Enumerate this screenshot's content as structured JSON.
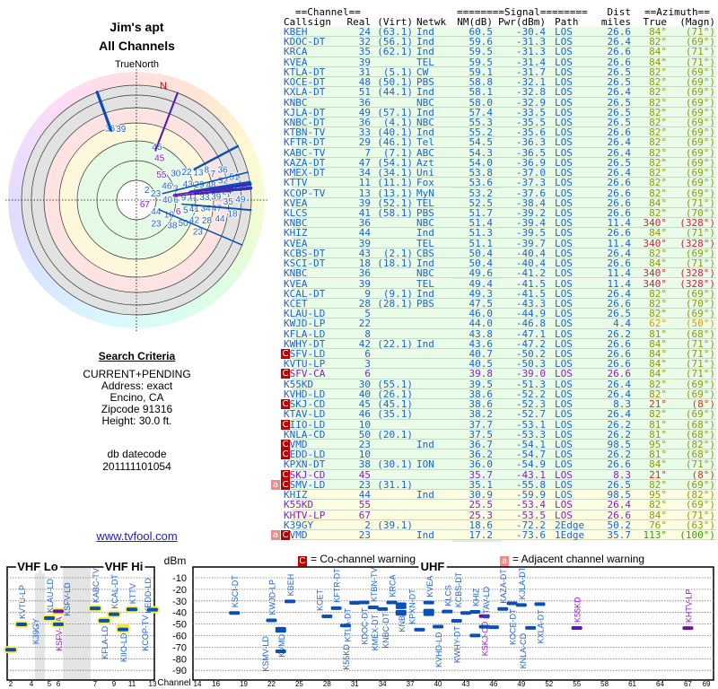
{
  "left": {
    "title": "Jim's apt",
    "subtitle": "All Channels",
    "true_north": "TrueNorth",
    "north_marker": "N",
    "search": {
      "heading": "Search Criteria",
      "lines": [
        "CURRENT+PENDING",
        "Address: exact",
        "Encino, CA",
        "Zipcode 91316",
        "Height: 30.0 ft."
      ]
    },
    "db_label": "db datecode",
    "db_value": "201111101054",
    "link": "www.tvfool.com"
  },
  "colors": {
    "blue": "#1c62d8",
    "purple": "#8a1ad0",
    "marker_blue": "#0a4fb8",
    "marker_purple": "#6a10b0",
    "co_warn": "#c00000",
    "adj_warn": "#f08a8a"
  },
  "table": {
    "group_channel": "==Channel==",
    "group_signal": "========Signal========",
    "group_dist": "Dist",
    "group_azimuth": "==Azimuth==",
    "columns": {
      "callsign": "Callsign",
      "real": "Real",
      "virt": "(Virt)",
      "netwk": "Netwk",
      "nm": "NM(dB)",
      "pwr": "Pwr(dBm)",
      "path": "Path",
      "dist": "miles",
      "az": "True",
      "magn": "(Magn)"
    },
    "rows": [
      {
        "warn": "",
        "callsign": "KBEH",
        "real": "24",
        "virt": "(63.1)",
        "netwk": "Ind",
        "nm": "60.5",
        "pwr": "-30.4",
        "path": "LOS",
        "dist": "26.6",
        "az": "84°",
        "magn": "(71°)",
        "color": "blue",
        "az_color": "olive",
        "bg": "green"
      },
      {
        "warn": "",
        "callsign": "KDOC-DT",
        "real": "32",
        "virt": "(56.1)",
        "netwk": "Ind",
        "nm": "59.6",
        "pwr": "-31.3",
        "path": "LOS",
        "dist": "26.4",
        "az": "82°",
        "magn": "(69°)",
        "color": "blue",
        "az_color": "olive",
        "bg": "green"
      },
      {
        "warn": "",
        "callsign": "KRCA",
        "real": "35",
        "virt": "(62.1)",
        "netwk": "Ind",
        "nm": "59.5",
        "pwr": "-31.3",
        "path": "LOS",
        "dist": "26.6",
        "az": "84°",
        "magn": "(71°)",
        "color": "blue",
        "az_color": "olive",
        "bg": "green"
      },
      {
        "warn": "",
        "callsign": "KVEA",
        "real": "39",
        "virt": "",
        "netwk": "TEL",
        "nm": "59.5",
        "pwr": "-31.4",
        "path": "LOS",
        "dist": "26.6",
        "az": "84°",
        "magn": "(71°)",
        "color": "blue",
        "az_color": "olive",
        "bg": "green"
      },
      {
        "warn": "",
        "callsign": "KTLA-DT",
        "real": "31",
        "virt": "(5.1)",
        "netwk": "CW",
        "nm": "59.1",
        "pwr": "-31.7",
        "path": "LOS",
        "dist": "26.5",
        "az": "82°",
        "magn": "(69°)",
        "color": "blue",
        "az_color": "olive",
        "bg": "green"
      },
      {
        "warn": "",
        "callsign": "KOCE-DT",
        "real": "48",
        "virt": "(50.1)",
        "netwk": "PBS",
        "nm": "58.8",
        "pwr": "-32.1",
        "path": "LOS",
        "dist": "26.5",
        "az": "82°",
        "magn": "(69°)",
        "color": "blue",
        "az_color": "olive",
        "bg": "green"
      },
      {
        "warn": "",
        "callsign": "KXLA-DT",
        "real": "51",
        "virt": "(44.1)",
        "netwk": "Ind",
        "nm": "58.1",
        "pwr": "-32.8",
        "path": "LOS",
        "dist": "26.4",
        "az": "82°",
        "magn": "(69°)",
        "color": "blue",
        "az_color": "olive",
        "bg": "green"
      },
      {
        "warn": "",
        "callsign": "KNBC",
        "real": "36",
        "virt": "",
        "netwk": "NBC",
        "nm": "58.0",
        "pwr": "-32.9",
        "path": "LOS",
        "dist": "26.5",
        "az": "82°",
        "magn": "(69°)",
        "color": "blue",
        "az_color": "olive",
        "bg": "green"
      },
      {
        "warn": "",
        "callsign": "KJLA-DT",
        "real": "49",
        "virt": "(57.1)",
        "netwk": "Ind",
        "nm": "57.4",
        "pwr": "-33.5",
        "path": "LOS",
        "dist": "26.5",
        "az": "82°",
        "magn": "(69°)",
        "color": "blue",
        "az_color": "olive",
        "bg": "green"
      },
      {
        "warn": "",
        "callsign": "KNBC-DT",
        "real": "36",
        "virt": "(4.1)",
        "netwk": "NBC",
        "nm": "55.3",
        "pwr": "-35.5",
        "path": "LOS",
        "dist": "26.5",
        "az": "82°",
        "magn": "(69°)",
        "color": "blue",
        "az_color": "olive",
        "bg": "green"
      },
      {
        "warn": "",
        "callsign": "KTBN-TV",
        "real": "33",
        "virt": "(40.1)",
        "netwk": "Ind",
        "nm": "55.2",
        "pwr": "-35.6",
        "path": "LOS",
        "dist": "26.6",
        "az": "82°",
        "magn": "(69°)",
        "color": "blue",
        "az_color": "olive",
        "bg": "green"
      },
      {
        "warn": "",
        "callsign": "KFTR-DT",
        "real": "29",
        "virt": "(46.1)",
        "netwk": "Tel",
        "nm": "54.5",
        "pwr": "-36.3",
        "path": "LOS",
        "dist": "26.4",
        "az": "82°",
        "magn": "(69°)",
        "color": "blue",
        "az_color": "olive",
        "bg": "green"
      },
      {
        "warn": "",
        "callsign": "KABC-TV",
        "real": "7",
        "virt": "(7.1)",
        "netwk": "ABC",
        "nm": "54.3",
        "pwr": "-36.5",
        "path": "LOS",
        "dist": "26.4",
        "az": "82°",
        "magn": "(69°)",
        "color": "blue",
        "az_color": "olive",
        "bg": "green"
      },
      {
        "warn": "",
        "callsign": "KAZA-DT",
        "real": "47",
        "virt": "(54.1)",
        "netwk": "Azt",
        "nm": "54.0",
        "pwr": "-36.9",
        "path": "LOS",
        "dist": "26.5",
        "az": "82°",
        "magn": "(69°)",
        "color": "blue",
        "az_color": "olive",
        "bg": "green"
      },
      {
        "warn": "",
        "callsign": "KMEX-DT",
        "real": "34",
        "virt": "(34.1)",
        "netwk": "Uni",
        "nm": "53.8",
        "pwr": "-37.0",
        "path": "LOS",
        "dist": "26.4",
        "az": "82°",
        "magn": "(69°)",
        "color": "blue",
        "az_color": "olive",
        "bg": "green"
      },
      {
        "warn": "",
        "callsign": "KTTV",
        "real": "11",
        "virt": "(11.1)",
        "netwk": "Fox",
        "nm": "53.6",
        "pwr": "-37.3",
        "path": "LOS",
        "dist": "26.6",
        "az": "82°",
        "magn": "(69°)",
        "color": "blue",
        "az_color": "olive",
        "bg": "green"
      },
      {
        "warn": "",
        "callsign": "KCOP-TV",
        "real": "13",
        "virt": "(13.1)",
        "netwk": "MyN",
        "nm": "53.2",
        "pwr": "-37.6",
        "path": "LOS",
        "dist": "26.6",
        "az": "82°",
        "magn": "(69°)",
        "color": "blue",
        "az_color": "olive",
        "bg": "green"
      },
      {
        "warn": "",
        "callsign": "KVEA",
        "real": "39",
        "virt": "(52.1)",
        "netwk": "TEL",
        "nm": "52.5",
        "pwr": "-38.4",
        "path": "LOS",
        "dist": "26.6",
        "az": "84°",
        "magn": "(71°)",
        "color": "blue",
        "az_color": "olive",
        "bg": "green"
      },
      {
        "warn": "",
        "callsign": "KLCS",
        "real": "41",
        "virt": "(58.1)",
        "netwk": "PBS",
        "nm": "51.7",
        "pwr": "-39.2",
        "path": "LOS",
        "dist": "26.6",
        "az": "82°",
        "magn": "(70°)",
        "color": "blue",
        "az_color": "olive",
        "bg": "green"
      },
      {
        "warn": "",
        "callsign": "KNBC",
        "real": "36",
        "virt": "",
        "netwk": "NBC",
        "nm": "51.4",
        "pwr": "-39.4",
        "path": "LOS",
        "dist": "11.4",
        "az": "340°",
        "magn": "(328°)",
        "color": "blue",
        "az_color": "red",
        "bg": "green"
      },
      {
        "warn": "",
        "callsign": "KHIZ",
        "real": "44",
        "virt": "",
        "netwk": "Ind",
        "nm": "51.3",
        "pwr": "-39.5",
        "path": "LOS",
        "dist": "26.6",
        "az": "84°",
        "magn": "(71°)",
        "color": "blue",
        "az_color": "olive",
        "bg": "green"
      },
      {
        "warn": "",
        "callsign": "KVEA",
        "real": "39",
        "virt": "",
        "netwk": "TEL",
        "nm": "51.1",
        "pwr": "-39.7",
        "path": "LOS",
        "dist": "11.4",
        "az": "340°",
        "magn": "(328°)",
        "color": "blue",
        "az_color": "red",
        "bg": "green"
      },
      {
        "warn": "",
        "callsign": "KCBS-DT",
        "real": "43",
        "virt": "(2.1)",
        "netwk": "CBS",
        "nm": "50.4",
        "pwr": "-40.4",
        "path": "LOS",
        "dist": "26.4",
        "az": "82°",
        "magn": "(69°)",
        "color": "blue",
        "az_color": "olive",
        "bg": "green"
      },
      {
        "warn": "",
        "callsign": "KSCI-DT",
        "real": "18",
        "virt": "(18.1)",
        "netwk": "Ind",
        "nm": "50.4",
        "pwr": "-40.4",
        "path": "LOS",
        "dist": "26.6",
        "az": "84°",
        "magn": "(71°)",
        "color": "blue",
        "az_color": "olive",
        "bg": "green"
      },
      {
        "warn": "",
        "callsign": "KNBC",
        "real": "36",
        "virt": "",
        "netwk": "NBC",
        "nm": "49.6",
        "pwr": "-41.2",
        "path": "LOS",
        "dist": "11.4",
        "az": "340°",
        "magn": "(328°)",
        "color": "blue",
        "az_color": "red",
        "bg": "green"
      },
      {
        "warn": "",
        "callsign": "KVEA",
        "real": "39",
        "virt": "",
        "netwk": "TEL",
        "nm": "49.4",
        "pwr": "-41.5",
        "path": "LOS",
        "dist": "11.4",
        "az": "340°",
        "magn": "(328°)",
        "color": "blue",
        "az_color": "red",
        "bg": "green"
      },
      {
        "warn": "",
        "callsign": "KCAL-DT",
        "real": "9",
        "virt": "(9.1)",
        "netwk": "Ind",
        "nm": "49.3",
        "pwr": "-41.5",
        "path": "LOS",
        "dist": "26.4",
        "az": "82°",
        "magn": "(69°)",
        "color": "blue",
        "az_color": "olive",
        "bg": "green"
      },
      {
        "warn": "",
        "callsign": "KCET",
        "real": "28",
        "virt": "(28.1)",
        "netwk": "PBS",
        "nm": "47.5",
        "pwr": "-43.3",
        "path": "LOS",
        "dist": "26.6",
        "az": "82°",
        "magn": "(70°)",
        "color": "blue",
        "az_color": "olive",
        "bg": "green"
      },
      {
        "warn": "",
        "callsign": "KLAU-LD",
        "real": "5",
        "virt": "",
        "netwk": "",
        "nm": "46.0",
        "pwr": "-44.9",
        "path": "LOS",
        "dist": "26.5",
        "az": "82°",
        "magn": "(69°)",
        "color": "blue",
        "az_color": "olive",
        "bg": "green"
      },
      {
        "warn": "",
        "callsign": "KWJD-LP",
        "real": "22",
        "virt": "",
        "netwk": "",
        "nm": "44.0",
        "pwr": "-46.8",
        "path": "LOS",
        "dist": "4.4",
        "az": "62°",
        "magn": "(50°)",
        "color": "blue",
        "az_color": "orange",
        "bg": "green"
      },
      {
        "warn": "",
        "callsign": "KFLA-LD",
        "real": "8",
        "virt": "",
        "netwk": "",
        "nm": "43.8",
        "pwr": "-47.1",
        "path": "LOS",
        "dist": "26.2",
        "az": "81°",
        "magn": "(68°)",
        "color": "blue",
        "az_color": "olive",
        "bg": "green"
      },
      {
        "warn": "",
        "callsign": "KWHY-DT",
        "real": "42",
        "virt": "(22.1)",
        "netwk": "Ind",
        "nm": "43.6",
        "pwr": "-47.2",
        "path": "LOS",
        "dist": "26.6",
        "az": "84°",
        "magn": "(71°)",
        "color": "blue",
        "az_color": "olive",
        "bg": "green"
      },
      {
        "warn": "C",
        "callsign": "KSFV-LD",
        "real": "6",
        "virt": "",
        "netwk": "",
        "nm": "40.7",
        "pwr": "-50.2",
        "path": "LOS",
        "dist": "26.6",
        "az": "84°",
        "magn": "(71°)",
        "color": "blue",
        "az_color": "olive",
        "bg": "green"
      },
      {
        "warn": "",
        "callsign": "KVTU-LP",
        "real": "3",
        "virt": "",
        "netwk": "",
        "nm": "40.5",
        "pwr": "-50.3",
        "path": "LOS",
        "dist": "26.6",
        "az": "84°",
        "magn": "(71°)",
        "color": "blue",
        "az_color": "olive",
        "bg": "green"
      },
      {
        "warn": "C",
        "callsign": "KSFV-CA",
        "real": "6",
        "virt": "",
        "netwk": "",
        "nm": "39.8",
        "pwr": "-39.0",
        "path": "LOS",
        "dist": "26.6",
        "az": "84°",
        "magn": "(71°)",
        "color": "purple",
        "az_color": "olive",
        "bg": "green"
      },
      {
        "warn": "",
        "callsign": "K55KD",
        "real": "30",
        "virt": "(55.1)",
        "netwk": "",
        "nm": "39.5",
        "pwr": "-51.3",
        "path": "LOS",
        "dist": "26.4",
        "az": "82°",
        "magn": "(69°)",
        "color": "blue",
        "az_color": "olive",
        "bg": "green"
      },
      {
        "warn": "",
        "callsign": "KVHD-LD",
        "real": "40",
        "virt": "(26.1)",
        "netwk": "",
        "nm": "38.6",
        "pwr": "-52.2",
        "path": "LOS",
        "dist": "26.4",
        "az": "82°",
        "magn": "(69°)",
        "color": "blue",
        "az_color": "olive",
        "bg": "green"
      },
      {
        "warn": "C",
        "callsign": "KSKJ-CD",
        "real": "45",
        "virt": "(45.1)",
        "netwk": "",
        "nm": "38.6",
        "pwr": "-52.3",
        "path": "LOS",
        "dist": "8.3",
        "az": "21°",
        "magn": "(8°)",
        "color": "blue",
        "az_color": "red2",
        "bg": "green"
      },
      {
        "warn": "",
        "callsign": "KTAV-LD",
        "real": "46",
        "virt": "(35.1)",
        "netwk": "",
        "nm": "38.2",
        "pwr": "-52.7",
        "path": "LOS",
        "dist": "26.4",
        "az": "82°",
        "magn": "(69°)",
        "color": "blue",
        "az_color": "olive",
        "bg": "green"
      },
      {
        "warn": "C",
        "callsign": "KIIO-LD",
        "real": "10",
        "virt": "",
        "netwk": "",
        "nm": "37.7",
        "pwr": "-53.1",
        "path": "LOS",
        "dist": "26.2",
        "az": "81°",
        "magn": "(68°)",
        "color": "blue",
        "az_color": "olive",
        "bg": "green"
      },
      {
        "warn": "",
        "callsign": "KNLA-CD",
        "real": "50",
        "virt": "(20.1)",
        "netwk": "",
        "nm": "37.5",
        "pwr": "-53.3",
        "path": "LOS",
        "dist": "26.2",
        "az": "81°",
        "magn": "(68°)",
        "color": "blue",
        "az_color": "olive",
        "bg": "green"
      },
      {
        "warn": "C",
        "callsign": "KVMD",
        "real": "23",
        "virt": "",
        "netwk": "Ind",
        "nm": "36.7",
        "pwr": "-54.1",
        "path": "LOS",
        "dist": "98.5",
        "az": "95°",
        "magn": "(82°)",
        "color": "blue",
        "az_color": "olive",
        "bg": "green"
      },
      {
        "warn": "C",
        "callsign": "KEDD-LD",
        "real": "10",
        "virt": "",
        "netwk": "",
        "nm": "36.2",
        "pwr": "-54.7",
        "path": "LOS",
        "dist": "26.2",
        "az": "81°",
        "magn": "(68°)",
        "color": "blue",
        "az_color": "olive",
        "bg": "green"
      },
      {
        "warn": "",
        "callsign": "KPXN-DT",
        "real": "38",
        "virt": "(30.1)",
        "netwk": "ION",
        "nm": "36.0",
        "pwr": "-54.9",
        "path": "LOS",
        "dist": "26.6",
        "az": "84°",
        "magn": "(71°)",
        "color": "blue",
        "az_color": "olive",
        "bg": "green"
      },
      {
        "warn": "C",
        "callsign": "KSKJ-CD",
        "real": "45",
        "virt": "",
        "netwk": "",
        "nm": "35.7",
        "pwr": "-43.1",
        "path": "LOS",
        "dist": "8.3",
        "az": "21°",
        "magn": "(8°)",
        "color": "purple",
        "az_color": "red2",
        "bg": "green"
      },
      {
        "warn": "aC",
        "callsign": "KSMV-LD",
        "real": "23",
        "virt": "(31.1)",
        "netwk": "",
        "nm": "35.1",
        "pwr": "-55.8",
        "path": "LOS",
        "dist": "26.5",
        "az": "82°",
        "magn": "(69°)",
        "color": "blue",
        "az_color": "olive",
        "bg": "green"
      },
      {
        "warn": "",
        "callsign": "KHIZ",
        "real": "44",
        "virt": "",
        "netwk": "Ind",
        "nm": "30.9",
        "pwr": "-59.9",
        "path": "LOS",
        "dist": "98.5",
        "az": "95°",
        "magn": "(82°)",
        "color": "blue",
        "az_color": "olive",
        "bg": "yellow"
      },
      {
        "warn": "",
        "callsign": "K55KD",
        "real": "55",
        "virt": "",
        "netwk": "",
        "nm": "25.5",
        "pwr": "-53.4",
        "path": "LOS",
        "dist": "26.4",
        "az": "82°",
        "magn": "(69°)",
        "color": "purple",
        "az_color": "olive",
        "bg": "yellow"
      },
      {
        "warn": "",
        "callsign": "KHTV-LP",
        "real": "67",
        "virt": "",
        "netwk": "",
        "nm": "25.3",
        "pwr": "-53.5",
        "path": "LOS",
        "dist": "26.6",
        "az": "84°",
        "magn": "(71°)",
        "color": "purple",
        "az_color": "olive",
        "bg": "yellow"
      },
      {
        "warn": "",
        "callsign": "K39GY",
        "real": "2",
        "virt": "(39.1)",
        "netwk": "",
        "nm": "18.6",
        "pwr": "-72.2",
        "path": "2Edge",
        "dist": "50.2",
        "az": "76°",
        "magn": "(63°)",
        "color": "blue",
        "az_color": "olive",
        "bg": "yellow"
      },
      {
        "warn": "aC",
        "callsign": "KVMD",
        "real": "23",
        "virt": "",
        "netwk": "Ind",
        "nm": "17.2",
        "pwr": "-73.6",
        "path": "1Edge",
        "dist": "35.7",
        "az": "113°",
        "magn": "(100°)",
        "color": "blue",
        "az_color": "green",
        "bg": "yellow"
      }
    ]
  },
  "legend": {
    "co_badge": "C",
    "co_text": "= Co-channel warning",
    "adj_badge": "a",
    "adj_text": "= Adjacent channel warning"
  },
  "spectrum": {
    "vhf_lo": "VHF Lo",
    "vhf_hi": "VHF Hi",
    "uhf": "UHF",
    "dbm_label": "dBm",
    "channel_label": "Channel",
    "dbm_ticks": [
      "-10",
      "-20",
      "-30",
      "-40",
      "-50",
      "-60",
      "-70",
      "-80",
      "-90"
    ],
    "vhf_channel_ticks": [
      "2",
      "4",
      "5",
      "6",
      "7",
      "9",
      "11",
      "13"
    ],
    "uhf_channel_ticks": [
      "14",
      "16",
      "19",
      "22",
      "25",
      "28",
      "31",
      "34",
      "37",
      "40",
      "43",
      "46",
      "49",
      "52",
      "55",
      "58",
      "61",
      "64",
      "67",
      "69"
    ]
  }
}
